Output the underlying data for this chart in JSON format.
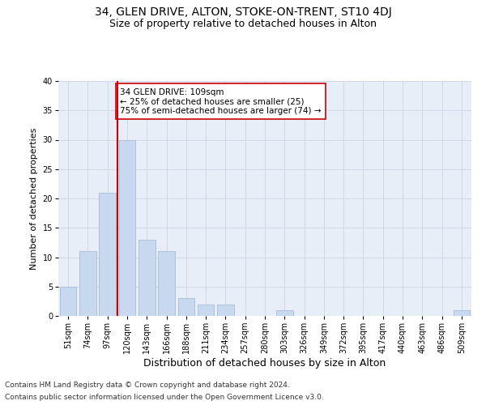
{
  "title1": "34, GLEN DRIVE, ALTON, STOKE-ON-TRENT, ST10 4DJ",
  "title2": "Size of property relative to detached houses in Alton",
  "xlabel": "Distribution of detached houses by size in Alton",
  "ylabel": "Number of detached properties",
  "categories": [
    "51sqm",
    "74sqm",
    "97sqm",
    "120sqm",
    "143sqm",
    "166sqm",
    "188sqm",
    "211sqm",
    "234sqm",
    "257sqm",
    "280sqm",
    "303sqm",
    "326sqm",
    "349sqm",
    "372sqm",
    "395sqm",
    "417sqm",
    "440sqm",
    "463sqm",
    "486sqm",
    "509sqm"
  ],
  "values": [
    5,
    11,
    21,
    30,
    13,
    11,
    3,
    2,
    2,
    0,
    0,
    1,
    0,
    0,
    0,
    0,
    0,
    0,
    0,
    0,
    1
  ],
  "bar_color": "#c8d8ee",
  "bar_edge_color": "#a8bcd8",
  "vline_x": 2.5,
  "vline_color": "#cc0000",
  "annotation_line1": "34 GLEN DRIVE: 109sqm",
  "annotation_line2": "← 25% of detached houses are smaller (25)",
  "annotation_line3": "75% of semi-detached houses are larger (74) →",
  "annotation_box_color": "#ffffff",
  "annotation_box_edge_color": "#cc0000",
  "ylim": [
    0,
    40
  ],
  "yticks": [
    0,
    5,
    10,
    15,
    20,
    25,
    30,
    35,
    40
  ],
  "grid_color": "#d0d8e8",
  "bg_color": "#e8eef8",
  "footer1": "Contains HM Land Registry data © Crown copyright and database right 2024.",
  "footer2": "Contains public sector information licensed under the Open Government Licence v3.0.",
  "title1_fontsize": 10,
  "title2_fontsize": 9,
  "xlabel_fontsize": 9,
  "ylabel_fontsize": 8,
  "tick_fontsize": 7,
  "annotation_fontsize": 7.5,
  "footer_fontsize": 6.5
}
